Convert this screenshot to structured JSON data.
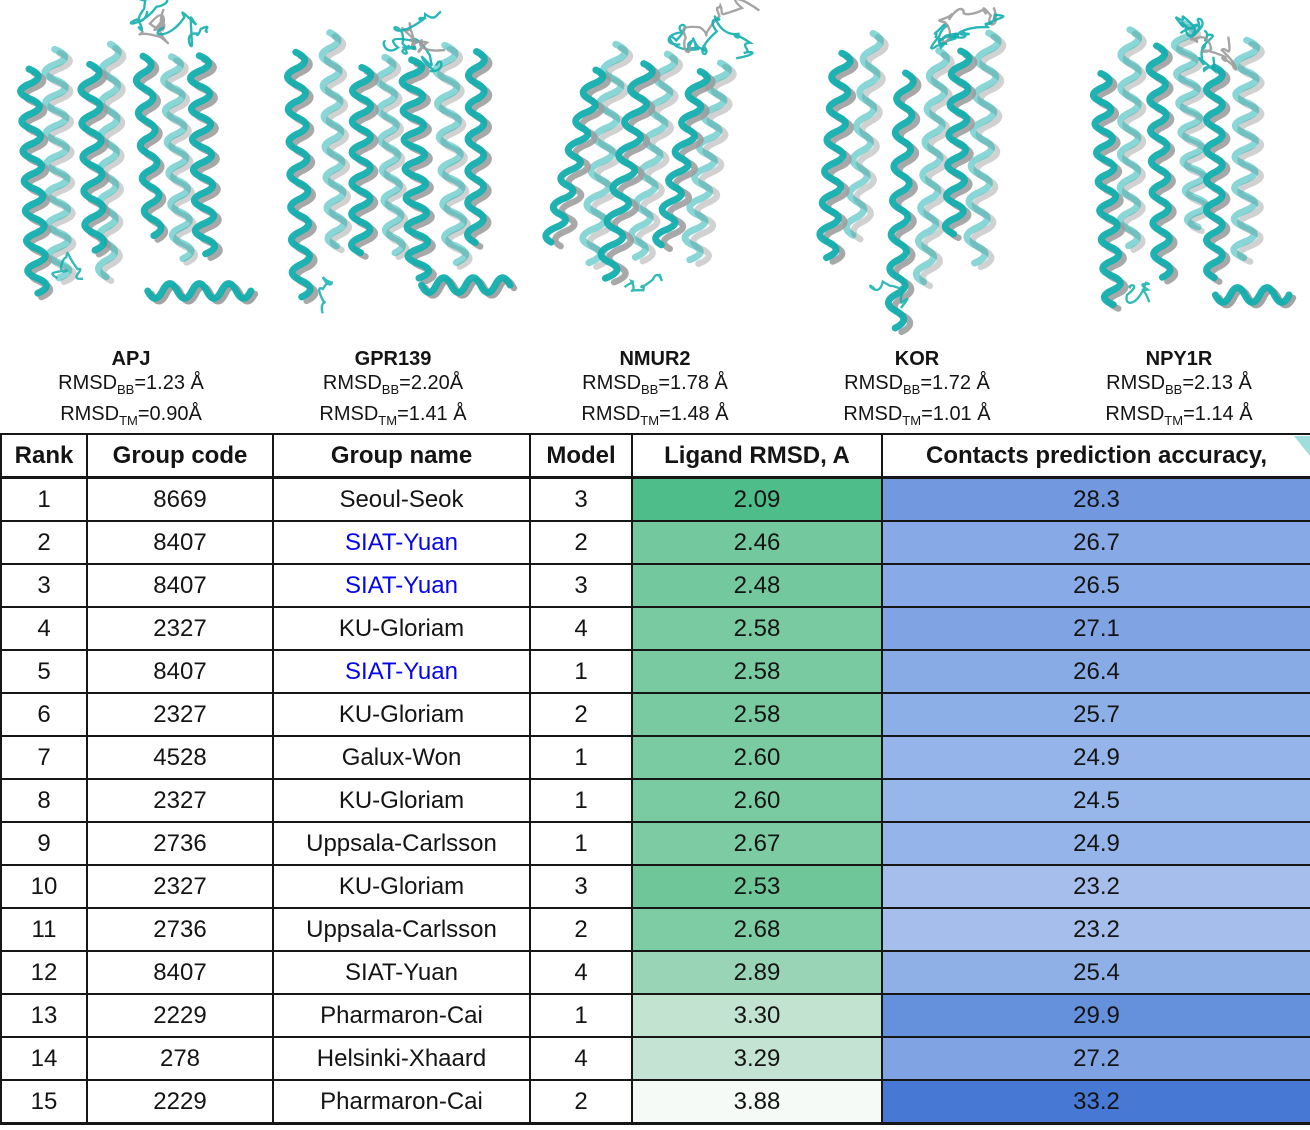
{
  "figures": [
    {
      "name": "APJ",
      "bb_text": "=1.23 Å",
      "tm_text": "=0.90Å"
    },
    {
      "name": "GPR139",
      "bb_text": "=2.20Å",
      "tm_text": "=1.41 Å"
    },
    {
      "name": "NMUR2",
      "bb_text": "=1.78 Å",
      "tm_text": "=1.48 Å"
    },
    {
      "name": "KOR",
      "bb_text": "=1.72 Å",
      "tm_text": "=1.01 Å"
    },
    {
      "name": "NPY1R",
      "bb_text": "=2.13 Å",
      "tm_text": "=1.14 Å"
    }
  ],
  "rmsd_label": {
    "prefix": "RMSD",
    "bb_sub": "BB",
    "tm_sub": "TM"
  },
  "colors": {
    "model_teal": "#12AEAE",
    "reference_gray": "#9B9B9B",
    "highlight_name_blue": "#0404EE",
    "border_black": "#161616"
  },
  "table": {
    "headers": [
      "Rank",
      "Group code",
      "Group name",
      "Model",
      "Ligand RMSD, A",
      "Contacts prediction accuracy,"
    ],
    "rows": [
      {
        "rank": "1",
        "group_code": "8669",
        "group_name": "Seoul-Seok",
        "name_blue": false,
        "model": "3",
        "ligand_rmsd": "2.09",
        "rmsd_color": "#4FBD89",
        "contacts": "28.3",
        "contacts_color": "#7298DF"
      },
      {
        "rank": "2",
        "group_code": "8407",
        "group_name": "SIAT-Yuan",
        "name_blue": true,
        "model": "2",
        "ligand_rmsd": "2.46",
        "rmsd_color": "#74C89D",
        "contacts": "26.7",
        "contacts_color": "#87A9E6"
      },
      {
        "rank": "3",
        "group_code": "8407",
        "group_name": "SIAT-Yuan",
        "name_blue": true,
        "model": "3",
        "ligand_rmsd": "2.48",
        "rmsd_color": "#73C89D",
        "contacts": "26.5",
        "contacts_color": "#88AAE6"
      },
      {
        "rank": "4",
        "group_code": "2327",
        "group_name": "KU-Gloriam",
        "name_blue": false,
        "model": "4",
        "ligand_rmsd": "2.58",
        "rmsd_color": "#79CAA1",
        "contacts": "27.1",
        "contacts_color": "#80A4E3"
      },
      {
        "rank": "5",
        "group_code": "8407",
        "group_name": "SIAT-Yuan",
        "name_blue": true,
        "model": "1",
        "ligand_rmsd": "2.58",
        "rmsd_color": "#79CAA1",
        "contacts": "26.4",
        "contacts_color": "#88ABE6"
      },
      {
        "rank": "6",
        "group_code": "2327",
        "group_name": "KU-Gloriam",
        "name_blue": false,
        "model": "2",
        "ligand_rmsd": "2.58",
        "rmsd_color": "#79CAA1",
        "contacts": "25.7",
        "contacts_color": "#8DAFE7"
      },
      {
        "rank": "7",
        "group_code": "4528",
        "group_name": "Galux-Won",
        "name_blue": false,
        "model": "1",
        "ligand_rmsd": "2.60",
        "rmsd_color": "#7BCBA2",
        "contacts": "24.9",
        "contacts_color": "#95B4E9"
      },
      {
        "rank": "8",
        "group_code": "2327",
        "group_name": "KU-Gloriam",
        "name_blue": false,
        "model": "1",
        "ligand_rmsd": "2.60",
        "rmsd_color": "#7BCBA2",
        "contacts": "24.5",
        "contacts_color": "#97B6E9"
      },
      {
        "rank": "9",
        "group_code": "2736",
        "group_name": "Uppsala-Carlsson",
        "name_blue": false,
        "model": "1",
        "ligand_rmsd": "2.67",
        "rmsd_color": "#7CCBA3",
        "contacts": "24.9",
        "contacts_color": "#95B4E9"
      },
      {
        "rank": "10",
        "group_code": "2327",
        "group_name": "KU-Gloriam",
        "name_blue": false,
        "model": "3",
        "ligand_rmsd": "2.53",
        "rmsd_color": "#6FC699",
        "contacts": "23.2",
        "contacts_color": "#A5BEEC"
      },
      {
        "rank": "11",
        "group_code": "2736",
        "group_name": "Uppsala-Carlsson",
        "name_blue": false,
        "model": "2",
        "ligand_rmsd": "2.68",
        "rmsd_color": "#7DCCA4",
        "contacts": "23.2",
        "contacts_color": "#A5BEEC"
      },
      {
        "rank": "12",
        "group_code": "8407",
        "group_name": "SIAT-Yuan",
        "name_blue": false,
        "model": "4",
        "ligand_rmsd": "2.89",
        "rmsd_color": "#9AD4B6",
        "contacts": "25.4",
        "contacts_color": "#8FB0E7"
      },
      {
        "rank": "13",
        "group_code": "2229",
        "group_name": "Pharmaron-Cai",
        "name_blue": false,
        "model": "1",
        "ligand_rmsd": "3.30",
        "rmsd_color": "#C3E3D1",
        "contacts": "29.9",
        "contacts_color": "#6590DC"
      },
      {
        "rank": "14",
        "group_code": "278",
        "group_name": "Helsinki-Xhaard",
        "name_blue": false,
        "model": "4",
        "ligand_rmsd": "3.29",
        "rmsd_color": "#C4E3D2",
        "contacts": "27.2",
        "contacts_color": "#7FA3E3"
      },
      {
        "rank": "15",
        "group_code": "2229",
        "group_name": "Pharmaron-Cai",
        "name_blue": false,
        "model": "2",
        "ligand_rmsd": "3.88",
        "rmsd_color": "#F5FAF7",
        "contacts": "33.2",
        "contacts_color": "#4778D3"
      }
    ]
  }
}
